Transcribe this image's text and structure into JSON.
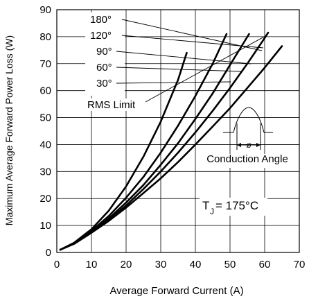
{
  "chart_data": {
    "type": "line",
    "xlabel": "Average Forward Current (A)",
    "ylabel": "Maximum Average Forward Power Loss (W)",
    "xlim": [
      0,
      70
    ],
    "ylim": [
      0,
      90
    ],
    "x_ticks": [
      0,
      10,
      20,
      30,
      40,
      50,
      60,
      70
    ],
    "y_ticks": [
      0,
      10,
      20,
      30,
      40,
      50,
      60,
      70,
      80,
      90
    ],
    "grid": true,
    "series": [
      {
        "name": "180°",
        "x": [
          1,
          5,
          10,
          15,
          20,
          25,
          30,
          35,
          37.5
        ],
        "y": [
          1,
          3.6,
          8.6,
          15.5,
          24.5,
          35.5,
          48.5,
          64,
          74
        ]
      },
      {
        "name": "120°",
        "x": [
          1,
          5,
          10,
          15,
          20,
          25,
          30,
          35,
          40,
          45,
          49
        ],
        "y": [
          1,
          3.5,
          8,
          13.5,
          20.3,
          28,
          37,
          47,
          58,
          70,
          81
        ]
      },
      {
        "name": "90°",
        "x": [
          1,
          5,
          10,
          15,
          20,
          25,
          30,
          35,
          40,
          45,
          50,
          55.5
        ],
        "y": [
          1,
          3.4,
          7.7,
          12.6,
          18.5,
          25,
          32.5,
          40.5,
          49.5,
          59,
          69.5,
          81
        ]
      },
      {
        "name": "60°",
        "x": [
          1,
          5,
          10,
          15,
          20,
          25,
          30,
          35,
          40,
          45,
          50,
          55,
          60,
          61
        ],
        "y": [
          1,
          3.3,
          7.5,
          12,
          17.4,
          23.5,
          30,
          37,
          44.5,
          52.5,
          61,
          70,
          79.5,
          81.5
        ]
      },
      {
        "name": "30°",
        "x": [
          1,
          5,
          10,
          15,
          20,
          25,
          30,
          35,
          40,
          45,
          50,
          55,
          60,
          65
        ],
        "y": [
          1,
          3.2,
          7.3,
          11.7,
          16.6,
          22,
          27.5,
          33.5,
          40,
          46.7,
          53.5,
          61,
          68.5,
          76.5
        ]
      }
    ],
    "rms_limit": {
      "label": "RMS Limit"
    },
    "inset_label": "Conduction Angle",
    "inset_symbol": "ø",
    "tj_label": "T",
    "tj_subscript": "J",
    "tj_value": " = 175°C"
  }
}
